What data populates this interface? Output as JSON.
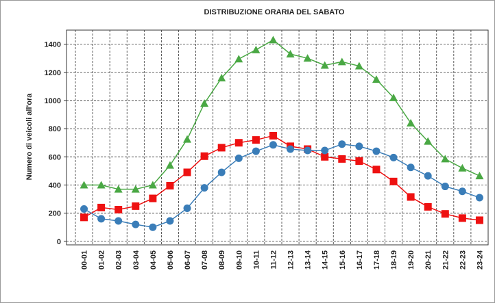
{
  "chart_data": {
    "type": "line",
    "title": "DISTRIBUZIONE ORARIA DEL SABATO",
    "y_label": "Numero di veicoli all'ora",
    "categories": [
      "00-01",
      "01-02",
      "02-03",
      "03-04",
      "04-05",
      "05-06",
      "06-07",
      "07-08",
      "08-09",
      "09-10",
      "10-11",
      "11-12",
      "12-13",
      "13-14",
      "14-15",
      "15-16",
      "16-17",
      "17-18",
      "18-19",
      "19-20",
      "20-21",
      "21-22",
      "22-23",
      "23-24"
    ],
    "series": [
      {
        "color": "#4aa844",
        "marker": "triangle",
        "values": [
          400,
          400,
          370,
          370,
          400,
          540,
          725,
          980,
          1160,
          1295,
          1360,
          1430,
          1330,
          1300,
          1250,
          1275,
          1245,
          1150,
          1020,
          840,
          710,
          585,
          520,
          465
        ]
      },
      {
        "color": "#ee1111",
        "marker": "square",
        "values": [
          170,
          240,
          225,
          250,
          305,
          395,
          490,
          605,
          665,
          700,
          720,
          750,
          675,
          655,
          600,
          585,
          570,
          510,
          425,
          315,
          245,
          195,
          165,
          150
        ]
      },
      {
        "color": "#3a7db8",
        "marker": "circle",
        "values": [
          230,
          160,
          145,
          120,
          100,
          145,
          235,
          380,
          490,
          590,
          640,
          685,
          655,
          645,
          645,
          690,
          675,
          640,
          595,
          525,
          465,
          390,
          355,
          310
        ]
      }
    ],
    "ylim": [
      -25,
      1500
    ],
    "yticks": [
      0,
      200,
      400,
      600,
      800,
      1000,
      1200,
      1400
    ],
    "grid": true
  }
}
